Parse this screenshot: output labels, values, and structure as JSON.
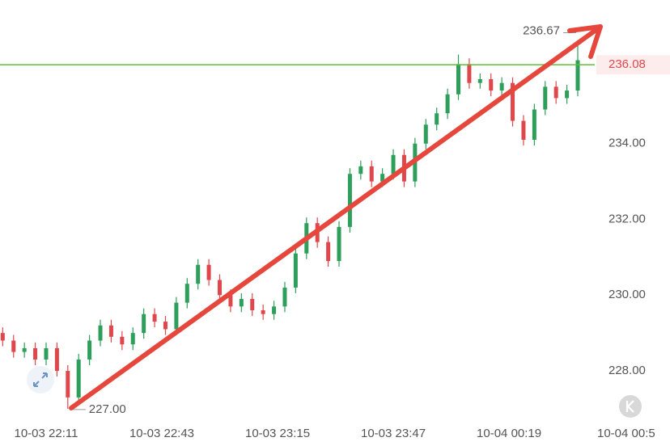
{
  "chart_data": {
    "type": "candlestick",
    "x": [
      -12,
      -9,
      -6,
      -3,
      0,
      3,
      6,
      9,
      12,
      15,
      18,
      21,
      24,
      27,
      30,
      33,
      36,
      39,
      42,
      45,
      48,
      51,
      54,
      57,
      60,
      63,
      66,
      69,
      72,
      75,
      78,
      81,
      84,
      87,
      90,
      93,
      96,
      99,
      102,
      105,
      108,
      111,
      114,
      117,
      120,
      123,
      126,
      129,
      132,
      135,
      138,
      141,
      144,
      147
    ],
    "open": [
      229.0,
      228.8,
      228.5,
      228.6,
      228.3,
      228.6,
      228.0,
      227.3,
      228.3,
      228.8,
      229.2,
      228.9,
      228.7,
      229.0,
      229.5,
      229.3,
      229.1,
      229.8,
      230.3,
      230.8,
      230.4,
      230.0,
      229.7,
      229.9,
      229.6,
      229.5,
      229.7,
      230.2,
      231.1,
      231.9,
      231.4,
      230.9,
      231.8,
      233.2,
      233.4,
      233.0,
      233.2,
      233.7,
      233.0,
      234.0,
      234.5,
      234.8,
      235.3,
      236.1,
      235.6,
      235.7,
      235.4,
      235.6,
      234.6,
      234.1,
      234.9,
      235.5,
      235.2,
      235.4
    ],
    "high": [
      229.15,
      228.95,
      228.75,
      228.75,
      228.75,
      228.75,
      228.15,
      228.45,
      228.95,
      229.35,
      229.35,
      229.05,
      229.15,
      229.65,
      229.65,
      229.45,
      229.95,
      230.45,
      230.95,
      230.95,
      230.55,
      230.15,
      230.05,
      230.05,
      229.75,
      229.85,
      230.35,
      231.25,
      232.05,
      232.05,
      231.55,
      231.95,
      233.35,
      233.55,
      233.55,
      233.35,
      233.85,
      233.85,
      234.15,
      234.65,
      234.95,
      235.45,
      236.35,
      236.25,
      235.85,
      235.85,
      235.75,
      235.75,
      234.75,
      235.05,
      235.65,
      235.65,
      235.55,
      236.67
    ],
    "low": [
      228.65,
      228.35,
      228.35,
      228.15,
      228.15,
      227.85,
      227.0,
      227.15,
      228.15,
      228.65,
      228.75,
      228.55,
      228.55,
      228.85,
      229.15,
      228.95,
      228.95,
      229.65,
      230.15,
      230.25,
      229.85,
      229.55,
      229.55,
      229.45,
      229.35,
      229.35,
      229.55,
      230.05,
      230.95,
      231.25,
      230.75,
      230.75,
      231.65,
      233.05,
      232.85,
      232.85,
      233.05,
      232.85,
      232.85,
      233.85,
      234.35,
      234.65,
      235.15,
      235.45,
      235.45,
      235.25,
      235.25,
      234.45,
      233.95,
      233.95,
      234.75,
      235.05,
      235.05,
      235.25
    ],
    "close": [
      228.8,
      228.5,
      228.6,
      228.3,
      228.6,
      228.0,
      227.3,
      228.3,
      228.8,
      229.2,
      228.9,
      228.7,
      229.0,
      229.5,
      229.3,
      229.1,
      229.8,
      230.3,
      230.8,
      230.4,
      230.0,
      229.7,
      229.9,
      229.6,
      229.5,
      229.7,
      230.2,
      231.1,
      231.9,
      231.4,
      230.9,
      231.8,
      233.2,
      233.4,
      233.0,
      233.2,
      233.7,
      233.0,
      234.0,
      234.5,
      234.8,
      235.3,
      236.1,
      235.6,
      235.7,
      235.4,
      235.6,
      234.6,
      234.1,
      234.9,
      235.5,
      235.2,
      235.4,
      236.2
    ],
    "up_color": "#2e9e5b",
    "down_color": "#e0474c",
    "xlim": [
      -12.75,
      151.7
    ],
    "ylim": [
      226.7,
      237.79
    ],
    "xticks": [
      {
        "value": 0,
        "label": "10-03 22:11"
      },
      {
        "value": 32,
        "label": "10-03 22:43"
      },
      {
        "value": 64,
        "label": "10-03 23:15"
      },
      {
        "value": 96,
        "label": "10-03 23:47"
      },
      {
        "value": 128,
        "label": "10-04 00:19"
      },
      {
        "value": 160,
        "label": "10-04 00:5"
      }
    ],
    "yticks": [
      {
        "value": 228,
        "label": "228.00"
      },
      {
        "value": 230,
        "label": "230.00"
      },
      {
        "value": 232,
        "label": "232.00"
      },
      {
        "value": 234,
        "label": "234.00"
      }
    ],
    "high_label": "236.67",
    "low_label": "227.00",
    "price_line": {
      "value": 236.08,
      "label": "236.08",
      "color": "#5cc134"
    }
  }
}
